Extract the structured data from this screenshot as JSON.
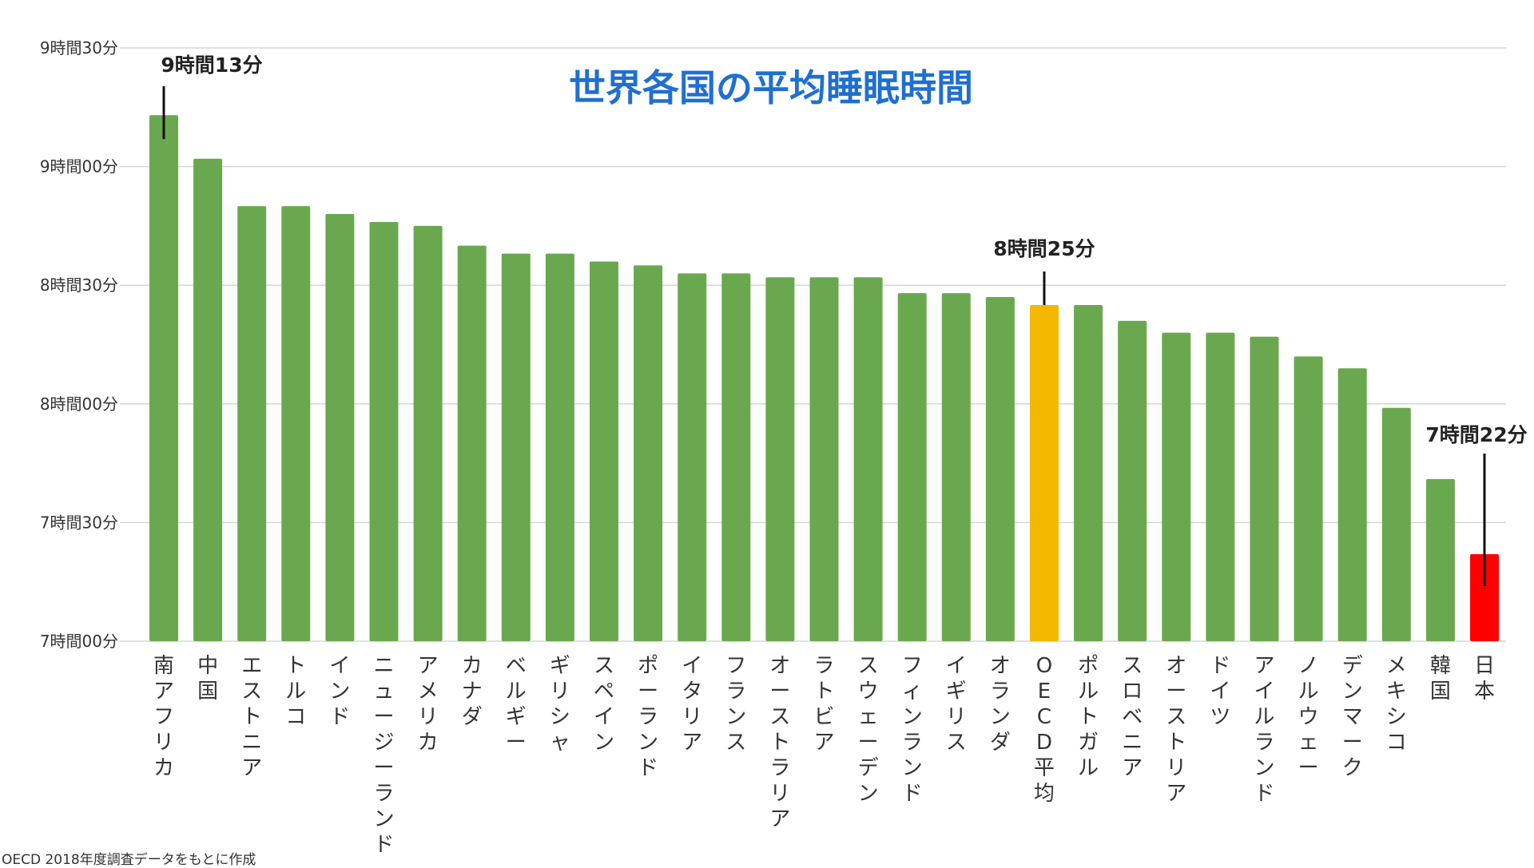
{
  "source_note": "OECD 2018年度調査データをもとに作成",
  "chart_data": {
    "type": "bar",
    "title": "世界各国の平均睡眠時間",
    "unit": "minutes",
    "ylim": [
      420,
      570
    ],
    "yticks": [
      {
        "value": 420,
        "label": "7時間00分"
      },
      {
        "value": 450,
        "label": "7時間30分"
      },
      {
        "value": 480,
        "label": "8時間00分"
      },
      {
        "value": 510,
        "label": "8時間30分"
      },
      {
        "value": 540,
        "label": "9時間00分"
      },
      {
        "value": 570,
        "label": "9時間30分"
      }
    ],
    "grid": true,
    "categories": [
      "南アフリカ",
      "中国",
      "エストニア",
      "トルコ",
      "インド",
      "ニュージーランド",
      "アメリカ",
      "カナダ",
      "ベルギー",
      "ギリシャ",
      "スペイン",
      "ポーランド",
      "イタリア",
      "フランス",
      "オーストラリア",
      "ラトビア",
      "スウェーデン",
      "フィンランド",
      "イギリス",
      "オランダ",
      "OECD平均",
      "ポルトガル",
      "スロベニア",
      "オーストリア",
      "ドイツ",
      "アイルランド",
      "ノルウェー",
      "デンマーク",
      "メキシコ",
      "韓国",
      "日本"
    ],
    "values": [
      553,
      542,
      530,
      530,
      528,
      526,
      525,
      520,
      518,
      518,
      516,
      515,
      513,
      513,
      512,
      512,
      512,
      508,
      508,
      507,
      505,
      505,
      501,
      498,
      498,
      497,
      492,
      489,
      479,
      461,
      442
    ],
    "bar_colors": {
      "default": "#6aa84f",
      "OECD平均": "#f5b800",
      "日本": "#ff0000"
    },
    "annotations": [
      {
        "category": "南アフリカ",
        "text": "9時間13分"
      },
      {
        "category": "OECD平均",
        "text": "8時間25分"
      },
      {
        "category": "日本",
        "text": "7時間22分"
      }
    ]
  }
}
